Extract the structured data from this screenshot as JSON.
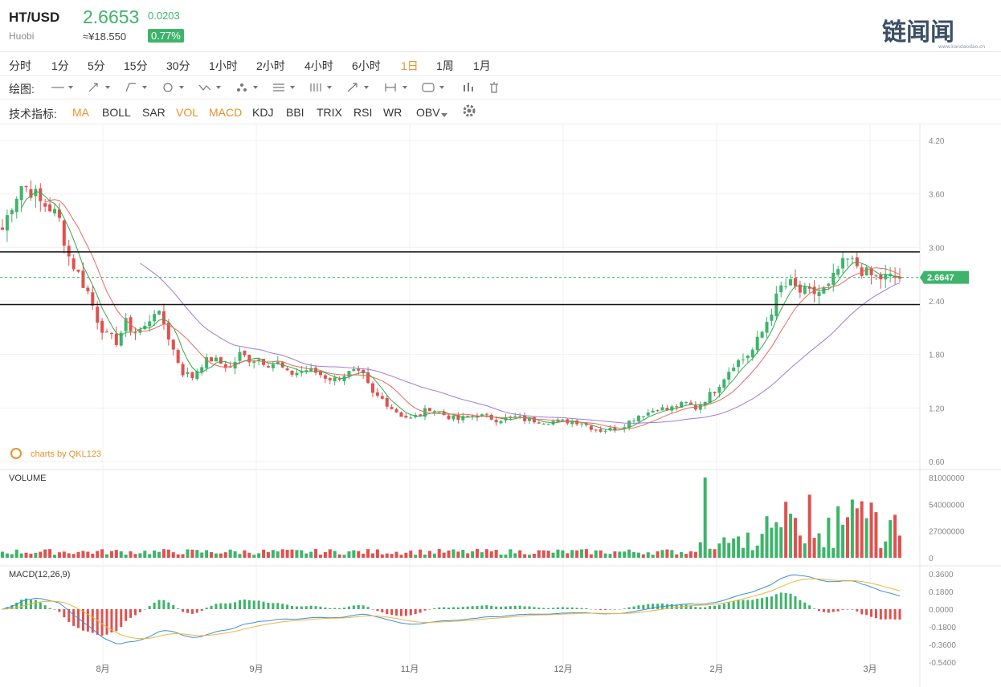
{
  "header": {
    "pair": "HT/USD",
    "exchange": "Huobi",
    "price": "2.6653",
    "change": "0.0203",
    "cny_price": "≈¥18.550",
    "change_pct": "0.77%",
    "logo_text": "链闻闻",
    "logo_subtext": "www.kandaodao.cn"
  },
  "timeframes": [
    "分时",
    "1分",
    "5分",
    "15分",
    "30分",
    "1小时",
    "2小时",
    "4小时",
    "6小时",
    "1日",
    "1周",
    "1月"
  ],
  "active_timeframe": "1日",
  "drawing": {
    "label": "绘图:",
    "tools": [
      "line-tool-icon",
      "pen-tool-icon",
      "polyline-tool-icon",
      "circle-tool-icon",
      "zigzag-tool-icon",
      "pattern-tool-icon",
      "fib-tool-icon",
      "gann-tool-icon",
      "arrow-tool-icon",
      "measure-tool-icon",
      "text-tool-icon",
      "bars-tool-icon",
      "trash-icon"
    ]
  },
  "indicators": {
    "label": "技术指标:",
    "items": [
      "MA",
      "BOLL",
      "SAR",
      "VOL",
      "MACD",
      "KDJ",
      "BBI",
      "TRIX",
      "RSI",
      "WR",
      "OBV"
    ],
    "active": [
      "MA",
      "VOL",
      "MACD"
    ]
  },
  "colors": {
    "up": "#3db46a",
    "down": "#e0514f",
    "ma_fast": "#35a84d",
    "ma_mid": "#e86a5f",
    "ma_slow": "#a07ad8",
    "dif": "#3d8fd9",
    "dea": "#f0b43c",
    "accent": "#e8912c"
  },
  "chart_data": [
    {
      "type": "candlestick",
      "title": "",
      "y_ticks": [
        "4.20",
        "3.60",
        "3.00",
        "2.40",
        "1.80",
        "1.20",
        "0.60"
      ],
      "ylim": [
        0.6,
        4.2
      ],
      "x_ticks": [
        "8月",
        "9月",
        "11月",
        "12月",
        "2月",
        "3月"
      ],
      "last_price_label": "2.6647",
      "last_price": 2.6647,
      "horizontal_lines": [
        2.95,
        2.36
      ],
      "watermark": "charts by QKL123",
      "close_path": [
        [
          0,
          3.2
        ],
        [
          2,
          3.5
        ],
        [
          4,
          3.7
        ],
        [
          6,
          3.65
        ],
        [
          8,
          3.5
        ],
        [
          10,
          3.45
        ],
        [
          12,
          3.3
        ],
        [
          14,
          2.9
        ],
        [
          16,
          2.7
        ],
        [
          18,
          2.5
        ],
        [
          20,
          2.2
        ],
        [
          22,
          2.0
        ],
        [
          24,
          1.95
        ],
        [
          26,
          2.15
        ],
        [
          28,
          2.05
        ],
        [
          30,
          2.1
        ],
        [
          32,
          2.3
        ],
        [
          34,
          2.15
        ],
        [
          36,
          1.85
        ],
        [
          38,
          1.6
        ],
        [
          40,
          1.55
        ],
        [
          42,
          1.7
        ],
        [
          44,
          1.75
        ],
        [
          46,
          1.7
        ],
        [
          48,
          1.65
        ],
        [
          50,
          1.8
        ],
        [
          52,
          1.75
        ],
        [
          54,
          1.75
        ],
        [
          56,
          1.7
        ],
        [
          58,
          1.7
        ],
        [
          60,
          1.58
        ],
        [
          62,
          1.6
        ],
        [
          64,
          1.63
        ],
        [
          66,
          1.6
        ],
        [
          68,
          1.55
        ],
        [
          70,
          1.52
        ],
        [
          72,
          1.58
        ],
        [
          74,
          1.6
        ],
        [
          76,
          1.55
        ],
        [
          78,
          1.35
        ],
        [
          80,
          1.3
        ],
        [
          82,
          1.2
        ],
        [
          84,
          1.12
        ],
        [
          86,
          1.08
        ],
        [
          88,
          1.13
        ],
        [
          90,
          1.2
        ],
        [
          92,
          1.15
        ],
        [
          94,
          1.1
        ],
        [
          96,
          1.07
        ],
        [
          98,
          1.1
        ],
        [
          100,
          1.12
        ],
        [
          102,
          1.1
        ],
        [
          104,
          1.07
        ],
        [
          106,
          1.08
        ],
        [
          108,
          1.1
        ],
        [
          110,
          1.07
        ],
        [
          112,
          1.06
        ],
        [
          114,
          1.05
        ],
        [
          116,
          1.05
        ],
        [
          118,
          1.05
        ],
        [
          120,
          1.05
        ],
        [
          122,
          1.04
        ],
        [
          124,
          0.98
        ],
        [
          126,
          0.95
        ],
        [
          128,
          0.96
        ],
        [
          130,
          0.98
        ],
        [
          132,
          1.05
        ],
        [
          134,
          1.12
        ],
        [
          136,
          1.15
        ],
        [
          138,
          1.2
        ],
        [
          140,
          1.18
        ],
        [
          142,
          1.22
        ],
        [
          144,
          1.25
        ],
        [
          146,
          1.2
        ],
        [
          148,
          1.3
        ],
        [
          150,
          1.4
        ],
        [
          152,
          1.55
        ],
        [
          154,
          1.7
        ],
        [
          156,
          1.75
        ],
        [
          158,
          1.85
        ],
        [
          160,
          2.05
        ],
        [
          162,
          2.3
        ],
        [
          164,
          2.55
        ],
        [
          166,
          2.58
        ],
        [
          168,
          2.5
        ],
        [
          170,
          2.48
        ],
        [
          172,
          2.5
        ],
        [
          174,
          2.55
        ],
        [
          176,
          2.75
        ],
        [
          178,
          2.85
        ],
        [
          180,
          2.8
        ],
        [
          182,
          2.7
        ],
        [
          184,
          2.66
        ]
      ]
    },
    {
      "type": "bar",
      "title": "VOLUME",
      "y_ticks": [
        "81000000",
        "54000000",
        "27000000",
        "0"
      ],
      "ylim": [
        0,
        81000000
      ],
      "spike_volume": 81000000
    },
    {
      "type": "line",
      "title": "MACD(12,26,9)",
      "y_ticks": [
        "0.3600",
        "0.1800",
        "0.0000",
        "-0.1800",
        "-0.3600",
        "-0.5400"
      ],
      "ylim": [
        -0.54,
        0.36
      ]
    }
  ]
}
